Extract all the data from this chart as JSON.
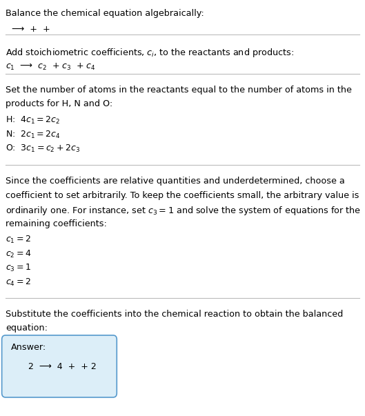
{
  "title": "Balance the chemical equation algebraically:",
  "line1": " ⟶  +  + ",
  "section2_header": "Add stoichiometric coefficients, $c_i$, to the reactants and products:",
  "section2_line": "$c_1$  ⟶  $c_2$  + $c_3$  + $c_4$",
  "section3_header_l1": "Set the number of atoms in the reactants equal to the number of atoms in the",
  "section3_header_l2": "products for H, N and O:",
  "section3_lines": [
    [
      "H:  ",
      "$4 c_1 = 2 c_2$"
    ],
    [
      "N:  ",
      "$2 c_1 = 2 c_4$"
    ],
    [
      "O:  ",
      "$3 c_1 = c_2 + 2 c_3$"
    ]
  ],
  "section4_header_l1": "Since the coefficients are relative quantities and underdetermined, choose a",
  "section4_header_l2": "coefficient to set arbitrarily. To keep the coefficients small, the arbitrary value is",
  "section4_header_l3": "ordinarily one. For instance, set $c_3 = 1$ and solve the system of equations for the",
  "section4_header_l4": "remaining coefficients:",
  "section4_lines": [
    "$c_1 = 2$",
    "$c_2 = 4$",
    "$c_3 = 1$",
    "$c_4 = 2$"
  ],
  "section5_header_l1": "Substitute the coefficients into the chemical reaction to obtain the balanced",
  "section5_header_l2": "equation:",
  "answer_label": "Answer:",
  "answer_line": "     2  ⟶  4  +  + 2",
  "bg_color": "#ffffff",
  "box_bg_color": "#dceef8",
  "box_border_color": "#5599cc",
  "text_color": "#000000",
  "divider_color": "#bbbbbb"
}
